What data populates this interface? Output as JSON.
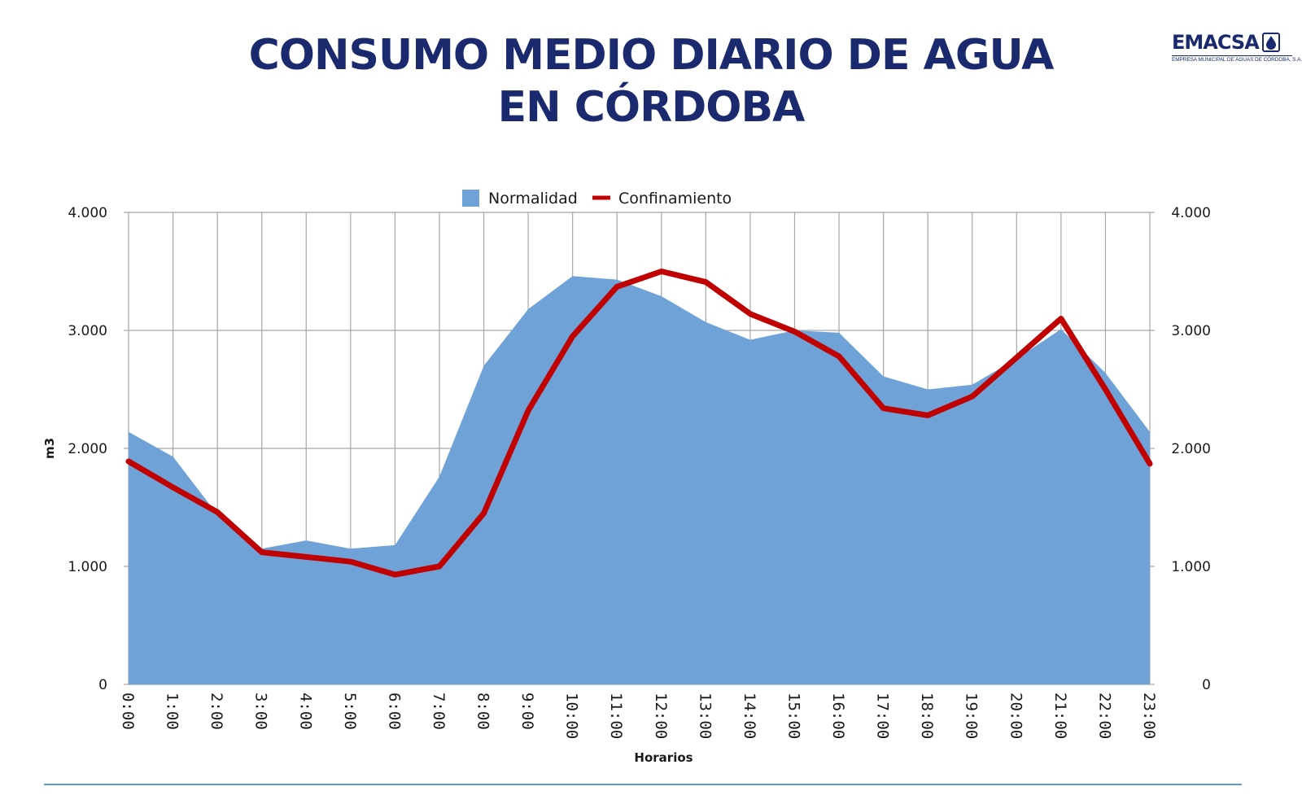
{
  "title": {
    "line1": "CONSUMO MEDIO DIARIO DE AGUA",
    "line2": "EN CÓRDOBA"
  },
  "logo": {
    "name": "EMACSA",
    "subtitle": "EMPRESA MUNICIPAL DE AGUAS DE CÓRDOBA, S.A.",
    "icon": "water-drop-icon"
  },
  "colors": {
    "title": "#1b2a6e",
    "area": "#6fa3d8",
    "line": "#c00000",
    "grid": "#a6a6a6"
  },
  "chart_data": {
    "type": "area",
    "xlabel": "Horarios",
    "ylabel": "m3",
    "ylim": [
      0,
      4000
    ],
    "yticks": [
      "0",
      "1.000",
      "2.000",
      "3.000",
      "4.000"
    ],
    "ytick_values": [
      0,
      1000,
      2000,
      3000,
      4000
    ],
    "secondary_yaxis": true,
    "grid": true,
    "legend_position": "top-center",
    "categories": [
      "0:00",
      "1:00",
      "2:00",
      "3:00",
      "4:00",
      "5:00",
      "6:00",
      "7:00",
      "8:00",
      "9:00",
      "10:00",
      "11:00",
      "12:00",
      "13:00",
      "14:00",
      "15:00",
      "16:00",
      "17:00",
      "18:00",
      "19:00",
      "20:00",
      "21:00",
      "22:00",
      "23:00"
    ],
    "series": [
      {
        "name": "Normalidad",
        "type": "area",
        "values": [
          2140,
          1930,
          1440,
          1150,
          1220,
          1150,
          1180,
          1760,
          2700,
          3180,
          3460,
          3430,
          3290,
          3070,
          2920,
          3000,
          2980,
          2610,
          2500,
          2540,
          2760,
          3010,
          2640,
          2140
        ]
      },
      {
        "name": "Confinamiento",
        "type": "line",
        "values": [
          1890,
          1670,
          1460,
          1120,
          1080,
          1040,
          930,
          1000,
          1450,
          2320,
          2950,
          3370,
          3500,
          3410,
          3140,
          2990,
          2780,
          2340,
          2280,
          2440,
          2770,
          3100,
          2500,
          1870
        ]
      }
    ]
  }
}
